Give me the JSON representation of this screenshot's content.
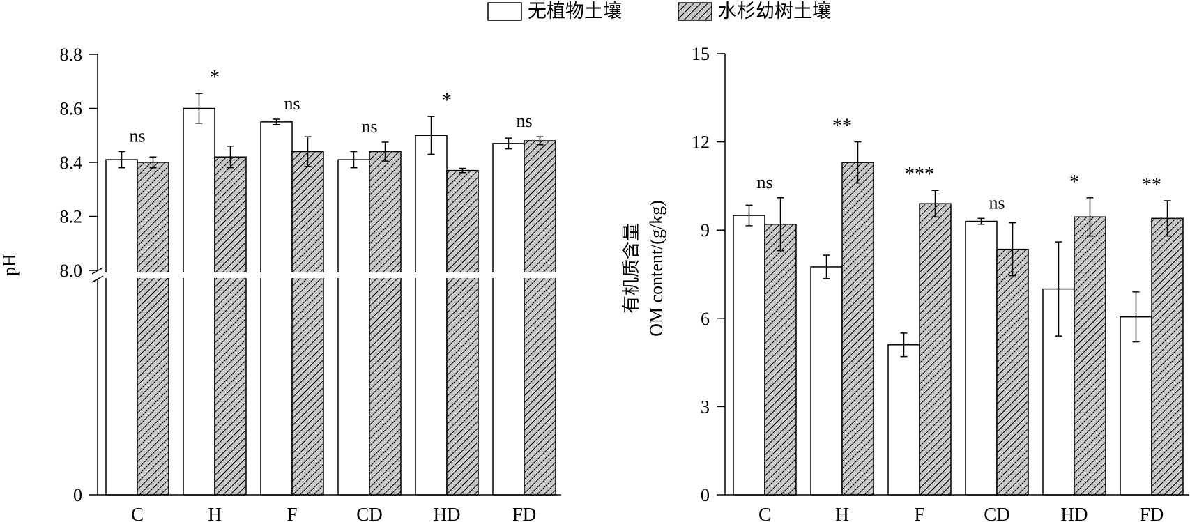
{
  "legend": {
    "items": [
      {
        "label": "无植物土壤",
        "fill": "#ffffff",
        "hatched": false
      },
      {
        "label": "水杉幼树土壤",
        "fill": "#c8c8c8",
        "hatched": true
      }
    ]
  },
  "chart_data": [
    {
      "type": "bar",
      "title": "",
      "xlabel": "",
      "ylabel": "pH",
      "categories": [
        "C",
        "H",
        "F",
        "CD",
        "HD",
        "FD"
      ],
      "series": [
        {
          "name": "无植物土壤",
          "values": [
            8.41,
            8.6,
            8.55,
            8.41,
            8.5,
            8.47
          ],
          "errors": [
            0.03,
            0.055,
            0.01,
            0.03,
            0.07,
            0.02
          ]
        },
        {
          "name": "水杉幼树土壤",
          "values": [
            8.4,
            8.42,
            8.44,
            8.44,
            8.37,
            8.48
          ],
          "errors": [
            0.02,
            0.04,
            0.055,
            0.035,
            0.008,
            0.015
          ]
        }
      ],
      "significance": [
        "ns",
        "*",
        "ns",
        "ns",
        "*",
        "ns"
      ],
      "axis_break": true,
      "ylim_upper": [
        8.0,
        8.8
      ],
      "yticks": [
        "0",
        "8.0",
        "8.2",
        "8.4",
        "8.6",
        "8.8"
      ]
    },
    {
      "type": "bar",
      "title": "",
      "xlabel": "",
      "ylabel": "有机质含量",
      "ylabel_sub": "OM content/(g/kg)",
      "categories": [
        "C",
        "H",
        "F",
        "CD",
        "HD",
        "FD"
      ],
      "series": [
        {
          "name": "无植物土壤",
          "values": [
            9.5,
            7.75,
            5.1,
            9.3,
            7.0,
            6.05
          ],
          "errors": [
            0.35,
            0.4,
            0.4,
            0.1,
            1.6,
            0.85
          ]
        },
        {
          "name": "水杉幼树土壤",
          "values": [
            9.2,
            11.3,
            9.9,
            8.35,
            9.45,
            9.4
          ],
          "errors": [
            0.9,
            0.7,
            0.45,
            0.9,
            0.65,
            0.6
          ]
        }
      ],
      "significance": [
        "ns",
        "**",
        "***",
        "ns",
        "*",
        "**"
      ],
      "ylim": [
        0,
        15
      ],
      "yticks": [
        "0",
        "3",
        "6",
        "9",
        "12",
        "15"
      ]
    }
  ]
}
